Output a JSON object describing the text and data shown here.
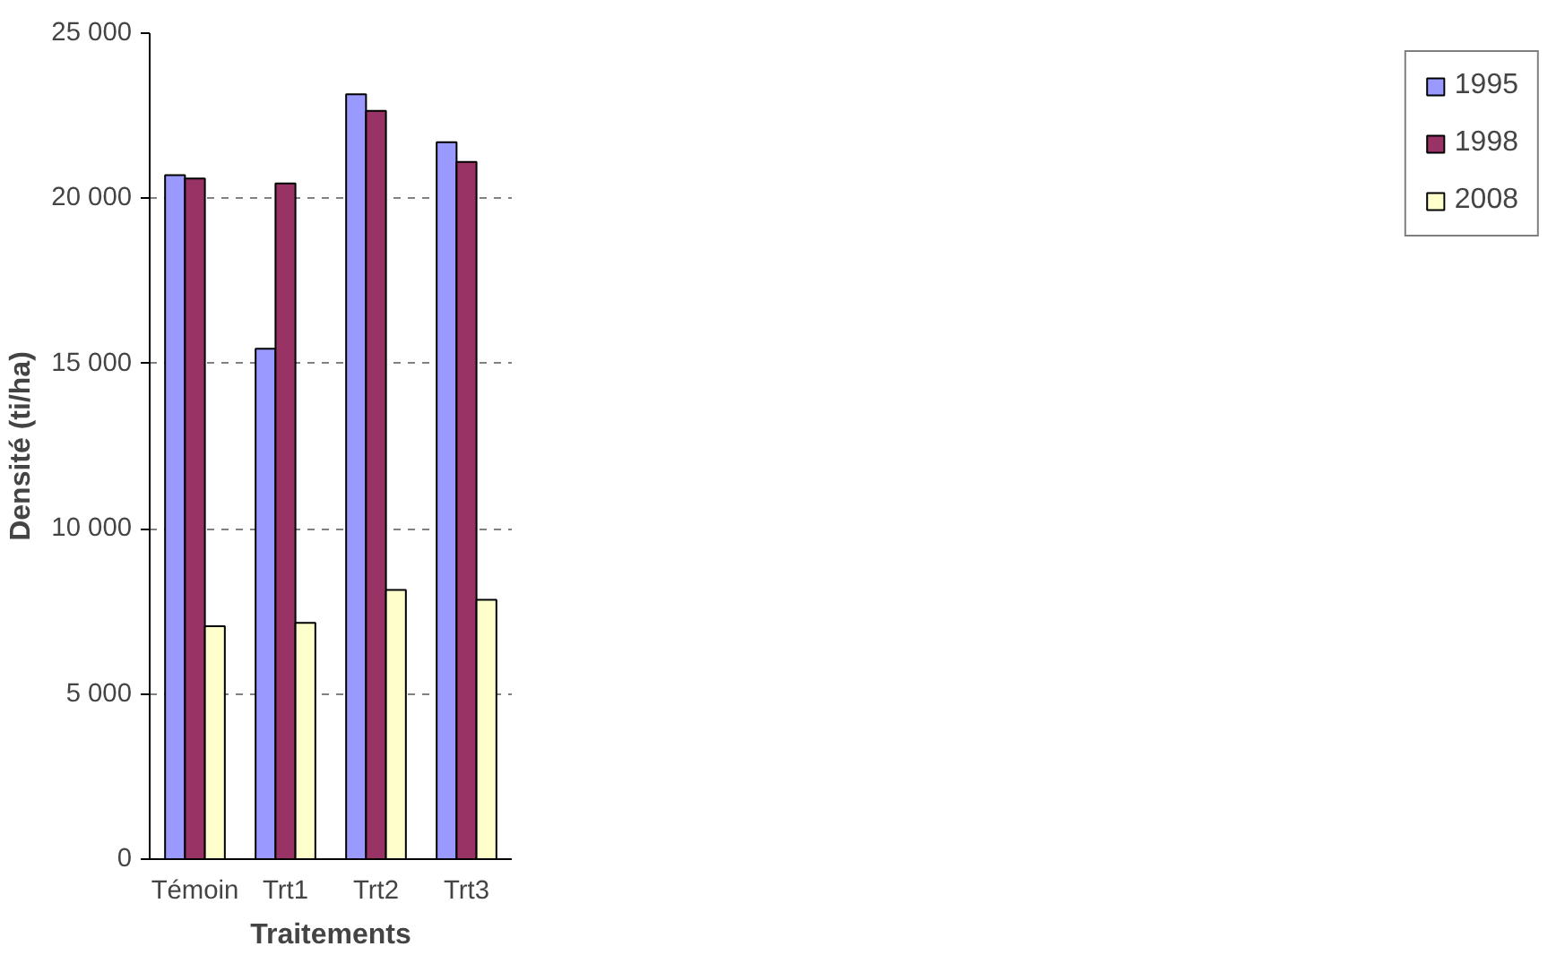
{
  "chart_data": {
    "type": "bar",
    "xlabel": "Traitements",
    "ylabel": "Densité (ti/ha)",
    "categories": [
      "Témoin",
      "Trt1",
      "Trt2",
      "Trt3"
    ],
    "series": [
      {
        "name": "1995",
        "color": "#9999ff",
        "values": [
          20700,
          15450,
          23150,
          21700
        ]
      },
      {
        "name": "1998",
        "color": "#993366",
        "values": [
          20600,
          20450,
          22650,
          21100
        ]
      },
      {
        "name": "2008",
        "color": "#ffffcc",
        "values": [
          7050,
          7150,
          8150,
          7850
        ]
      }
    ],
    "ylim": [
      0,
      25000
    ],
    "yticks": [
      {
        "value": 0,
        "label": "0"
      },
      {
        "value": 5000,
        "label": "5 000"
      },
      {
        "value": 10000,
        "label": "10 000"
      },
      {
        "value": 15000,
        "label": "15 000"
      },
      {
        "value": 20000,
        "label": "20 000"
      },
      {
        "value": 25000,
        "label": "25 000"
      }
    ],
    "grid": "y",
    "legend": "right"
  }
}
